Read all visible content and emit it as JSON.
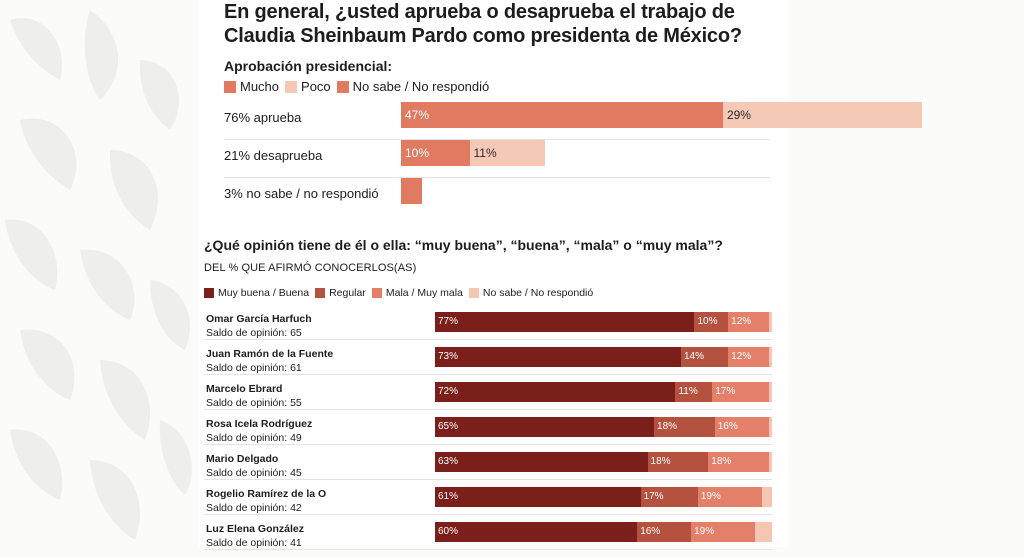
{
  "title": "En general, ¿usted aprueba o desaprueba el trabajo de Claudia Sheinbaum Pardo como presidenta de México?",
  "chart_data": [
    {
      "type": "bar",
      "orientation": "horizontal",
      "stacked": true,
      "title": "En general, ¿usted aprueba o desaprueba el trabajo de Claudia Sheinbaum Pardo como presidenta de México?",
      "subtitle": "Aprobación presidencial:",
      "legend": [
        {
          "label": "Mucho",
          "color": "#e07a61"
        },
        {
          "label": "Poco",
          "color": "#f5c9b5"
        },
        {
          "label": "No sabe / No respondió",
          "color": "#e07a61"
        }
      ],
      "rows": [
        {
          "label": "76% aprueba",
          "segments": [
            {
              "series": "Mucho",
              "value": 47,
              "label": "47%",
              "color": "#e07a61"
            },
            {
              "series": "Poco",
              "value": 29,
              "label": "29%",
              "color": "#f5c9b5"
            }
          ]
        },
        {
          "label": "21% desaprueba",
          "segments": [
            {
              "series": "Mucho",
              "value": 10,
              "label": "10%",
              "color": "#e07a61"
            },
            {
              "series": "Poco",
              "value": 11,
              "label": "11%",
              "color": "#f5c9b5"
            }
          ]
        },
        {
          "label": "3% no sabe / no respondió",
          "segments": [
            {
              "series": "No sabe / No respondió",
              "value": 3,
              "label": "",
              "color": "#e07a61"
            }
          ]
        }
      ]
    },
    {
      "type": "bar",
      "orientation": "horizontal",
      "stacked": true,
      "title": "¿Qué opinión tiene de él o ella: “muy buena”, “buena”, “mala” o “muy mala”?",
      "subtitle": "DEL % QUE AFIRMÓ CONOCERLOS(AS)",
      "legend": [
        {
          "label": "Muy buena / Buena",
          "color": "#7a1f1a"
        },
        {
          "label": "Regular",
          "color": "#b5523f"
        },
        {
          "label": "Mala / Muy mala",
          "color": "#e4806a"
        },
        {
          "label": "No sabe / No respondió",
          "color": "#f5c6b2"
        }
      ],
      "rows": [
        {
          "name": "Omar García Harfuch",
          "saldo": "Saldo de opinión: 65",
          "segments": [
            {
              "value": 77,
              "label": "77%"
            },
            {
              "value": 10,
              "label": "10%"
            },
            {
              "value": 12,
              "label": "12%"
            },
            {
              "value": 1,
              "label": ""
            }
          ]
        },
        {
          "name": "Juan Ramón de la Fuente",
          "saldo": "Saldo de opinión: 61",
          "segments": [
            {
              "value": 73,
              "label": "73%"
            },
            {
              "value": 14,
              "label": "14%"
            },
            {
              "value": 12,
              "label": "12%"
            },
            {
              "value": 1,
              "label": ""
            }
          ]
        },
        {
          "name": "Marcelo Ebrard",
          "saldo": "Saldo de opinión: 55",
          "segments": [
            {
              "value": 72,
              "label": "72%"
            },
            {
              "value": 11,
              "label": "11%"
            },
            {
              "value": 17,
              "label": "17%"
            },
            {
              "value": 0.5,
              "label": ""
            }
          ]
        },
        {
          "name": "Rosa Icela Rodríguez",
          "saldo": "Saldo de opinión: 49",
          "segments": [
            {
              "value": 65,
              "label": "65%"
            },
            {
              "value": 18,
              "label": "18%"
            },
            {
              "value": 16,
              "label": "16%"
            },
            {
              "value": 1,
              "label": ""
            }
          ]
        },
        {
          "name": "Mario Delgado",
          "saldo": "Saldo de opinión: 45",
          "segments": [
            {
              "value": 63,
              "label": "63%"
            },
            {
              "value": 18,
              "label": "18%"
            },
            {
              "value": 18,
              "label": "18%"
            },
            {
              "value": 0.5,
              "label": ""
            }
          ]
        },
        {
          "name": "Rogelio Ramírez de la O",
          "saldo": "Saldo de opinión: 42",
          "segments": [
            {
              "value": 61,
              "label": "61%"
            },
            {
              "value": 17,
              "label": "17%"
            },
            {
              "value": 19,
              "label": "19%"
            },
            {
              "value": 3,
              "label": ""
            }
          ]
        },
        {
          "name": "Luz Elena González",
          "saldo": "Saldo de opinión: 41",
          "segments": [
            {
              "value": 60,
              "label": "60%"
            },
            {
              "value": 16,
              "label": "16%"
            },
            {
              "value": 19,
              "label": "19%"
            },
            {
              "value": 5,
              "label": ""
            }
          ]
        }
      ]
    }
  ]
}
